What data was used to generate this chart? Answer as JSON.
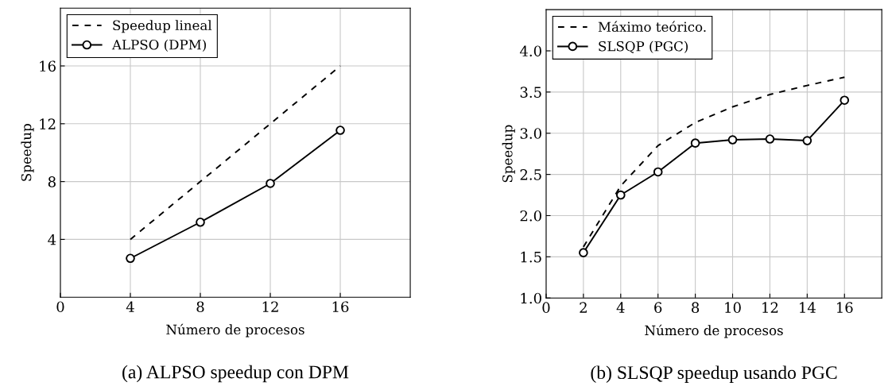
{
  "chart_data": [
    {
      "type": "line",
      "title": "(a) ALPSO speedup con DPM",
      "xlabel": "Número de procesos",
      "ylabel": "Speedup",
      "xlim": [
        0,
        20
      ],
      "xticks": [
        0,
        4,
        8,
        12,
        16
      ],
      "ylim": [
        0,
        20
      ],
      "yticks": [
        4,
        8,
        12,
        16
      ],
      "grid": true,
      "legend": "top left",
      "series": [
        {
          "name": "Speedup lineal",
          "color": "#000000",
          "x": [
            4,
            16
          ],
          "values": [
            4,
            16
          ],
          "line_style": "dashed",
          "marker": "none"
        },
        {
          "name": "ALPSO (DPM)",
          "color": "#000000",
          "x": [
            4,
            8,
            12,
            16
          ],
          "values": [
            2.69,
            5.19,
            7.87,
            11.55
          ],
          "line_style": "solid",
          "marker": "circle"
        }
      ]
    },
    {
      "type": "line",
      "title": "(b) SLSQP speedup usando PGC",
      "xlabel": "Número de procesos",
      "ylabel": "Speedup",
      "xlim": [
        0,
        18
      ],
      "xticks": [
        0,
        2,
        4,
        6,
        8,
        10,
        12,
        14,
        16
      ],
      "ylim": [
        1.0,
        4.5
      ],
      "yticks": [
        {
          "value": 1.0,
          "label": "1.0"
        },
        {
          "value": 1.5,
          "label": "1.5"
        },
        {
          "value": 2.0,
          "label": "2.0"
        },
        {
          "value": 2.5,
          "label": "2.5"
        },
        {
          "value": 3.0,
          "label": "3.0"
        },
        {
          "value": 3.5,
          "label": "3.5"
        },
        {
          "value": 4.0,
          "label": "4.0"
        }
      ],
      "grid": true,
      "legend": "top left",
      "series": [
        {
          "name": "Máximo teórico.",
          "color": "#000000",
          "x": [
            2,
            4,
            6,
            8,
            10,
            12,
            14,
            16
          ],
          "values": [
            1.62,
            2.36,
            2.85,
            3.13,
            3.32,
            3.47,
            3.58,
            3.68
          ],
          "line_style": "dashed",
          "marker": "none"
        },
        {
          "name": "SLSQP (PGC)",
          "color": "#000000",
          "x": [
            2,
            4,
            6,
            8,
            10,
            12,
            14,
            16
          ],
          "values": [
            1.55,
            2.25,
            2.53,
            2.88,
            2.92,
            2.93,
            2.91,
            3.4
          ],
          "line_style": "solid",
          "marker": "circle"
        }
      ]
    }
  ]
}
